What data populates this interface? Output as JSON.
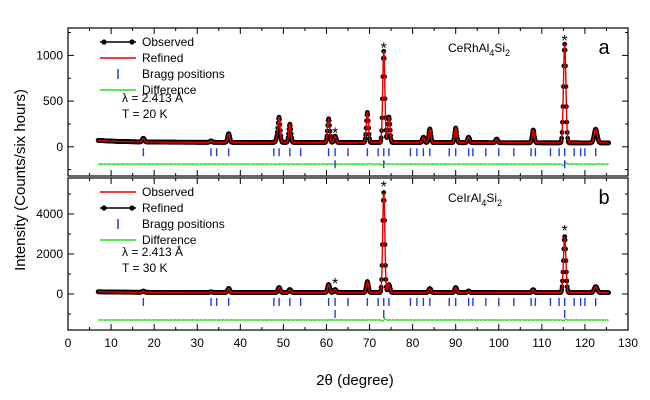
{
  "ylabel": "Intensity (Counts/six hours)",
  "xlabel": "2θ (degree)",
  "colors": {
    "observed": "#000000",
    "refined": "#e00000",
    "bragg": "#1f3fcf",
    "difference": "#22dd22"
  },
  "chart_data": [
    {
      "type": "line",
      "panel_letter": "a",
      "compound_parts": [
        "CeRhAl",
        "4",
        "Si",
        "2"
      ],
      "wavelength": "λ = 2.413  Å",
      "temperature": "T = 20 K",
      "legend": [
        "Observed",
        "Refined",
        "Bragg positions",
        "Difference"
      ],
      "xlim": [
        0,
        130
      ],
      "ylim": [
        -320,
        1300
      ],
      "yticks": [
        0,
        500,
        1000
      ],
      "background": 50,
      "peaks": [
        [
          17.5,
          40,
          0.35
        ],
        [
          33.2,
          15,
          0.35
        ],
        [
          37.3,
          95,
          0.35
        ],
        [
          48.5,
          40,
          0.35
        ],
        [
          49.0,
          270,
          0.35
        ],
        [
          51.5,
          200,
          0.35
        ],
        [
          60.5,
          260,
          0.35
        ],
        [
          62.0,
          70,
          0.35
        ],
        [
          69.5,
          330,
          0.35
        ],
        [
          73.3,
          1000,
          0.35
        ],
        [
          74.5,
          280,
          0.35
        ],
        [
          82.5,
          60,
          0.35
        ],
        [
          84.0,
          150,
          0.35
        ],
        [
          90.0,
          160,
          0.35
        ],
        [
          93.0,
          60,
          0.35
        ],
        [
          99.5,
          40,
          0.35
        ],
        [
          108.0,
          140,
          0.35
        ],
        [
          115.3,
          1080,
          0.4
        ],
        [
          122.5,
          150,
          0.5
        ]
      ],
      "bragg_positions": [
        17.5,
        33.2,
        34.5,
        37.3,
        47.8,
        49.0,
        51.5,
        54.0,
        60.5,
        62.0,
        65.0,
        69.5,
        72.0,
        73.3,
        74.5,
        79.5,
        81.0,
        82.5,
        84.0,
        88.5,
        90.0,
        93.0,
        94.0,
        97.0,
        100.0,
        103.5,
        107.5,
        108.5,
        112.0,
        114.0,
        115.3,
        117.5,
        119.0,
        120.0,
        122.5
      ],
      "bragg_offset": -60,
      "bragg_star_positions": [
        62.0,
        73.3,
        115.3
      ],
      "difference_offset": -190,
      "star_labels": [
        [
          62.0,
          70
        ],
        [
          73.3,
          1000
        ],
        [
          115.3,
          1080
        ]
      ]
    },
    {
      "type": "line",
      "panel_letter": "b",
      "compound_parts": [
        "CeIrAl",
        "4",
        "Si",
        "2"
      ],
      "wavelength": "λ = 2.413  Å",
      "temperature": "T = 30 K",
      "legend": [
        "Observed",
        "Refined",
        "Bragg positions",
        "Difference"
      ],
      "xlim": [
        0,
        130
      ],
      "ylim": [
        -1800,
        5800
      ],
      "yticks": [
        0,
        2000,
        4000
      ],
      "background": 80,
      "peaks": [
        [
          17.5,
          60,
          0.35
        ],
        [
          33.2,
          30,
          0.35
        ],
        [
          37.3,
          200,
          0.35
        ],
        [
          49.0,
          250,
          0.35
        ],
        [
          51.5,
          150,
          0.35
        ],
        [
          60.5,
          400,
          0.35
        ],
        [
          62.0,
          150,
          0.35
        ],
        [
          69.5,
          550,
          0.35
        ],
        [
          73.3,
          5000,
          0.35
        ],
        [
          74.5,
          400,
          0.35
        ],
        [
          84.0,
          200,
          0.35
        ],
        [
          90.0,
          250,
          0.35
        ],
        [
          93.0,
          80,
          0.35
        ],
        [
          108.0,
          150,
          0.35
        ],
        [
          115.3,
          2800,
          0.4
        ],
        [
          122.5,
          300,
          0.5
        ]
      ],
      "bragg_positions": [
        17.5,
        33.2,
        34.5,
        37.3,
        47.8,
        49.0,
        51.5,
        54.0,
        60.5,
        62.0,
        65.0,
        69.5,
        72.0,
        73.3,
        74.5,
        79.5,
        81.0,
        82.5,
        84.0,
        88.5,
        90.0,
        93.0,
        94.0,
        97.0,
        100.0,
        103.5,
        107.5,
        108.5,
        112.0,
        114.0,
        115.3,
        117.5,
        119.0,
        120.0,
        122.5
      ],
      "bragg_offset": -400,
      "bragg_star_positions": [
        62.0,
        73.3,
        115.3
      ],
      "difference_offset": -1300,
      "star_labels": [
        [
          62.0,
          150
        ],
        [
          73.3,
          5000
        ],
        [
          115.3,
          2800
        ]
      ]
    }
  ],
  "xaxis": {
    "ticks": [
      0,
      10,
      20,
      30,
      40,
      50,
      60,
      70,
      80,
      90,
      100,
      110,
      120,
      130
    ]
  }
}
